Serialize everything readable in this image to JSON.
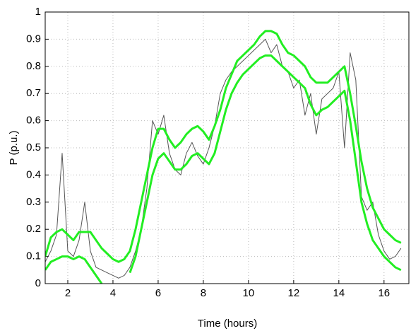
{
  "chart_data": {
    "type": "line",
    "xlabel": "Time (hours)",
    "ylabel": "P (p.u.)",
    "x": [
      1,
      1.25,
      1.5,
      1.75,
      2,
      2.25,
      2.5,
      2.75,
      3,
      3.25,
      3.5,
      3.75,
      4,
      4.25,
      4.5,
      4.75,
      5,
      5.25,
      5.5,
      5.75,
      6,
      6.25,
      6.5,
      6.75,
      7,
      7.25,
      7.5,
      7.75,
      8,
      8.25,
      8.5,
      8.75,
      9,
      9.25,
      9.5,
      9.75,
      10,
      10.25,
      10.5,
      10.75,
      11,
      11.25,
      11.5,
      11.75,
      12,
      12.25,
      12.5,
      12.75,
      13,
      13.25,
      13.5,
      13.75,
      14,
      14.25,
      14.5,
      14.75,
      15,
      15.25,
      15.5,
      15.75,
      16,
      16.25,
      16.5,
      16.75
    ],
    "series": [
      {
        "color": "#555555",
        "values": [
          0.08,
          0.12,
          0.18,
          0.48,
          0.12,
          0.1,
          0.16,
          0.3,
          0.12,
          0.06,
          0.05,
          0.04,
          0.03,
          0.02,
          0.03,
          0.06,
          0.12,
          0.2,
          0.35,
          0.6,
          0.55,
          0.62,
          0.48,
          0.42,
          0.4,
          0.48,
          0.52,
          0.47,
          0.44,
          0.5,
          0.58,
          0.7,
          0.75,
          0.78,
          0.8,
          0.82,
          0.84,
          0.86,
          0.88,
          0.9,
          0.85,
          0.88,
          0.8,
          0.78,
          0.72,
          0.75,
          0.62,
          0.7,
          0.55,
          0.68,
          0.7,
          0.72,
          0.78,
          0.5,
          0.85,
          0.75,
          0.32,
          0.27,
          0.3,
          0.18,
          0.12,
          0.09,
          0.1,
          0.13
        ]
      },
      {
        "color": "#22ee22",
        "values": [
          0.1,
          0.17,
          0.19,
          0.2,
          0.18,
          0.16,
          0.19,
          0.19,
          0.19,
          0.16,
          0.13,
          0.11,
          0.09,
          0.08,
          0.09,
          0.12,
          0.2,
          0.3,
          0.4,
          0.5,
          0.57,
          0.57,
          0.53,
          0.5,
          0.52,
          0.55,
          0.57,
          0.58,
          0.56,
          0.53,
          0.58,
          0.64,
          0.72,
          0.77,
          0.82,
          0.84,
          0.86,
          0.88,
          0.91,
          0.93,
          0.93,
          0.92,
          0.88,
          0.85,
          0.84,
          0.82,
          0.8,
          0.76,
          0.74,
          0.74,
          0.74,
          0.76,
          0.78,
          0.8,
          0.7,
          0.58,
          0.45,
          0.35,
          0.28,
          0.24,
          0.2,
          0.18,
          0.16,
          0.15
        ]
      },
      {
        "color": "#22ee22",
        "values": [
          0.05,
          0.08,
          0.09,
          0.1,
          0.1,
          0.09,
          0.1,
          0.09,
          0.06,
          0.03,
          0.0,
          null,
          null,
          null,
          null,
          0.04,
          0.1,
          0.2,
          0.3,
          0.4,
          0.46,
          0.48,
          0.45,
          0.42,
          0.42,
          0.44,
          0.47,
          0.48,
          0.46,
          0.44,
          0.48,
          0.56,
          0.64,
          0.7,
          0.74,
          0.77,
          0.79,
          0.81,
          0.83,
          0.84,
          0.84,
          0.82,
          0.8,
          0.78,
          0.76,
          0.74,
          0.72,
          0.66,
          0.62,
          0.64,
          0.65,
          0.67,
          0.69,
          0.71,
          0.6,
          0.45,
          0.3,
          0.22,
          0.16,
          0.13,
          0.1,
          0.08,
          0.06,
          0.05
        ]
      }
    ],
    "xlim": [
      1,
      17.1
    ],
    "ylim": [
      0,
      1
    ],
    "xticks": [
      2,
      4,
      6,
      8,
      10,
      12,
      14,
      16
    ],
    "yticks": [
      0,
      0.1,
      0.2,
      0.3,
      0.4,
      0.5,
      0.6,
      0.7,
      0.8,
      0.9,
      1
    ],
    "grid": true
  }
}
